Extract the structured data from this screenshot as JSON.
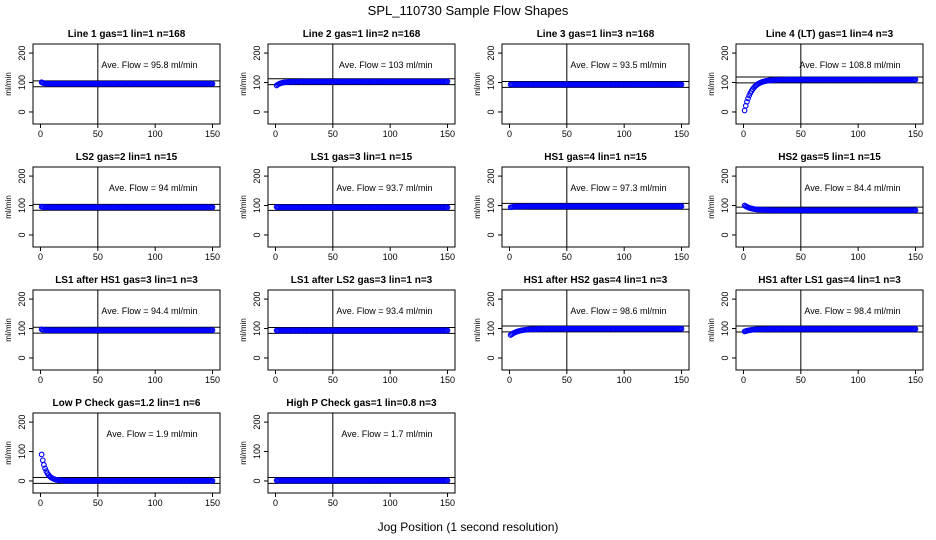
{
  "figure": {
    "title": "SPL_110730  Sample Flow Shapes",
    "xlabel": "Jog Position (1 second resolution)"
  },
  "chart_data": [
    {
      "type": "scatter",
      "title": "Line 1 gas=1 lin=1 n=168",
      "ylabel": "ml/min",
      "annotation": "Ave. Flow =  95.8  ml/min",
      "xlim": [
        0,
        150
      ],
      "ylim": [
        -30,
        220
      ],
      "xticks": [
        0,
        50,
        100,
        150
      ],
      "yticks": [
        0,
        100,
        200
      ],
      "vline": 50,
      "hlines": [
        85.8,
        105.8
      ],
      "series": [
        {
          "name": "",
          "shape": "flat",
          "start": 101,
          "end": 95.8,
          "decay": 2,
          "points": 150
        }
      ],
      "point_color": "#0000ff"
    },
    {
      "type": "scatter",
      "title": "Line 2 gas=1 lin=2 n=168",
      "ylabel": "ml/min",
      "annotation": "Ave. Flow =  103  ml/min",
      "xlim": [
        0,
        150
      ],
      "ylim": [
        -30,
        220
      ],
      "xticks": [
        0,
        50,
        100,
        150
      ],
      "yticks": [
        0,
        100,
        200
      ],
      "vline": 50,
      "hlines": [
        93,
        113
      ],
      "series": [
        {
          "name": "",
          "shape": "rise",
          "start": 90,
          "end": 103,
          "decay": 4,
          "points": 150
        }
      ],
      "point_color": "#0000ff"
    },
    {
      "type": "scatter",
      "title": "Line 3 gas=1 lin=3 n=168",
      "ylabel": "ml/min",
      "annotation": "Ave. Flow =  93.5  ml/min",
      "xlim": [
        0,
        150
      ],
      "ylim": [
        -30,
        220
      ],
      "xticks": [
        0,
        50,
        100,
        150
      ],
      "yticks": [
        0,
        100,
        200
      ],
      "vline": 50,
      "hlines": [
        83.5,
        103.5
      ],
      "series": [
        {
          "name": "",
          "shape": "flat",
          "start": 93.5,
          "end": 93.5,
          "decay": 2,
          "points": 150
        }
      ],
      "point_color": "#0000ff"
    },
    {
      "type": "scatter",
      "title": "Line 4 (LT) gas=1 lin=4 n=3",
      "ylabel": "ml/min",
      "annotation": "Ave. Flow =  108.8  ml/min",
      "xlim": [
        0,
        150
      ],
      "ylim": [
        -30,
        220
      ],
      "xticks": [
        0,
        50,
        100,
        150
      ],
      "yticks": [
        0,
        100,
        200
      ],
      "vline": 50,
      "hlines": [
        98.8,
        118.8
      ],
      "series": [
        {
          "name": "",
          "shape": "rise",
          "start": 5,
          "end": 110,
          "decay": 6,
          "points": 150
        }
      ],
      "point_color": "#0000ff"
    },
    {
      "type": "scatter",
      "title": "LS2 gas=2 lin=1 n=15",
      "ylabel": "ml/min",
      "annotation": "Ave. Flow =  94  ml/min",
      "xlim": [
        0,
        150
      ],
      "ylim": [
        -30,
        220
      ],
      "xticks": [
        0,
        50,
        100,
        150
      ],
      "yticks": [
        0,
        100,
        200
      ],
      "vline": 50,
      "hlines": [
        84,
        104
      ],
      "series": [
        {
          "name": "",
          "shape": "flat",
          "start": 96,
          "end": 94,
          "decay": 2,
          "points": 150
        }
      ],
      "point_color": "#0000ff"
    },
    {
      "type": "scatter",
      "title": "LS1 gas=3 lin=1 n=15",
      "ylabel": "ml/min",
      "annotation": "Ave. Flow =  93.7  ml/min",
      "xlim": [
        0,
        150
      ],
      "ylim": [
        -30,
        220
      ],
      "xticks": [
        0,
        50,
        100,
        150
      ],
      "yticks": [
        0,
        100,
        200
      ],
      "vline": 50,
      "hlines": [
        83.7,
        103.7
      ],
      "series": [
        {
          "name": "",
          "shape": "flat",
          "start": 95,
          "end": 93.7,
          "decay": 2,
          "points": 150
        }
      ],
      "point_color": "#0000ff"
    },
    {
      "type": "scatter",
      "title": "HS1 gas=4 lin=1 n=15",
      "ylabel": "ml/min",
      "annotation": "Ave. Flow =  97.3  ml/min",
      "xlim": [
        0,
        150
      ],
      "ylim": [
        -30,
        220
      ],
      "xticks": [
        0,
        50,
        100,
        150
      ],
      "yticks": [
        0,
        100,
        200
      ],
      "vline": 50,
      "hlines": [
        87.3,
        107.3
      ],
      "series": [
        {
          "name": "",
          "shape": "rise",
          "start": 94,
          "end": 97.5,
          "decay": 4,
          "points": 150
        }
      ],
      "point_color": "#0000ff"
    },
    {
      "type": "scatter",
      "title": "HS2 gas=5 lin=1 n=15",
      "ylabel": "ml/min",
      "annotation": "Ave. Flow =  84.4  ml/min",
      "xlim": [
        0,
        150
      ],
      "ylim": [
        -30,
        220
      ],
      "xticks": [
        0,
        50,
        100,
        150
      ],
      "yticks": [
        0,
        100,
        200
      ],
      "vline": 50,
      "hlines": [
        74.4,
        94.4
      ],
      "series": [
        {
          "name": "",
          "shape": "decay",
          "start": 100,
          "end": 84,
          "decay": 6,
          "points": 150
        }
      ],
      "point_color": "#0000ff"
    },
    {
      "type": "scatter",
      "title": "LS1 after HS1 gas=3 lin=1 n=3",
      "ylabel": "ml/min",
      "annotation": "Ave. Flow =  94.4  ml/min",
      "xlim": [
        0,
        150
      ],
      "ylim": [
        -30,
        220
      ],
      "xticks": [
        0,
        50,
        100,
        150
      ],
      "yticks": [
        0,
        100,
        200
      ],
      "vline": 50,
      "hlines": [
        84.4,
        104.4
      ],
      "series": [
        {
          "name": "",
          "shape": "flat",
          "start": 97,
          "end": 94.4,
          "decay": 2,
          "points": 150
        }
      ],
      "point_color": "#0000ff"
    },
    {
      "type": "scatter",
      "title": "LS1 after LS2 gas=3 lin=1 n=3",
      "ylabel": "ml/min",
      "annotation": "Ave. Flow =  93.4  ml/min",
      "xlim": [
        0,
        150
      ],
      "ylim": [
        -30,
        220
      ],
      "xticks": [
        0,
        50,
        100,
        150
      ],
      "yticks": [
        0,
        100,
        200
      ],
      "vline": 50,
      "hlines": [
        83.4,
        103.4
      ],
      "series": [
        {
          "name": "",
          "shape": "flat",
          "start": 93.4,
          "end": 93.4,
          "decay": 2,
          "points": 150
        }
      ],
      "point_color": "#0000ff"
    },
    {
      "type": "scatter",
      "title": "HS1 after HS2 gas=4 lin=1 n=3",
      "ylabel": "ml/min",
      "annotation": "Ave. Flow =  98.6  ml/min",
      "xlim": [
        0,
        150
      ],
      "ylim": [
        -30,
        220
      ],
      "xticks": [
        0,
        50,
        100,
        150
      ],
      "yticks": [
        0,
        100,
        200
      ],
      "vline": 50,
      "hlines": [
        88.6,
        108.6
      ],
      "series": [
        {
          "name": "",
          "shape": "rise",
          "start": 78,
          "end": 99,
          "decay": 7,
          "points": 150
        }
      ],
      "point_color": "#0000ff"
    },
    {
      "type": "scatter",
      "title": "HS1 after LS1 gas=4 lin=1 n=3",
      "ylabel": "ml/min",
      "annotation": "Ave. Flow =  98.4  ml/min",
      "xlim": [
        0,
        150
      ],
      "ylim": [
        -30,
        220
      ],
      "xticks": [
        0,
        50,
        100,
        150
      ],
      "yticks": [
        0,
        100,
        200
      ],
      "vline": 50,
      "hlines": [
        88.4,
        108.4
      ],
      "series": [
        {
          "name": "",
          "shape": "rise",
          "start": 90,
          "end": 98.6,
          "decay": 6,
          "points": 150
        }
      ],
      "point_color": "#0000ff"
    },
    {
      "type": "scatter",
      "title": "Low P Check gas=1.2 lin=1 n=6",
      "ylabel": "ml/min",
      "annotation": "Ave. Flow =  1.9  ml/min",
      "xlim": [
        0,
        150
      ],
      "ylim": [
        -30,
        220
      ],
      "xticks": [
        0,
        50,
        100,
        150
      ],
      "yticks": [
        0,
        100,
        200
      ],
      "vline": 50,
      "hlines": [
        -8.1,
        11.9
      ],
      "series": [
        {
          "name": "",
          "shape": "decay",
          "start": 90,
          "end": 0.5,
          "decay": 4,
          "points": 150
        }
      ],
      "point_color": "#0000ff"
    },
    {
      "type": "scatter",
      "title": "High P Check gas=1 lin=0.8 n=3",
      "ylabel": "ml/min",
      "annotation": "Ave. Flow =  1.7  ml/min",
      "xlim": [
        0,
        150
      ],
      "ylim": [
        -30,
        220
      ],
      "xticks": [
        0,
        50,
        100,
        150
      ],
      "yticks": [
        0,
        100,
        200
      ],
      "vline": 50,
      "hlines": [
        -8.3,
        11.7
      ],
      "series": [
        {
          "name": "",
          "shape": "flat",
          "start": 1.7,
          "end": 1.7,
          "decay": 2,
          "points": 150
        }
      ],
      "point_color": "#0000ff"
    }
  ]
}
